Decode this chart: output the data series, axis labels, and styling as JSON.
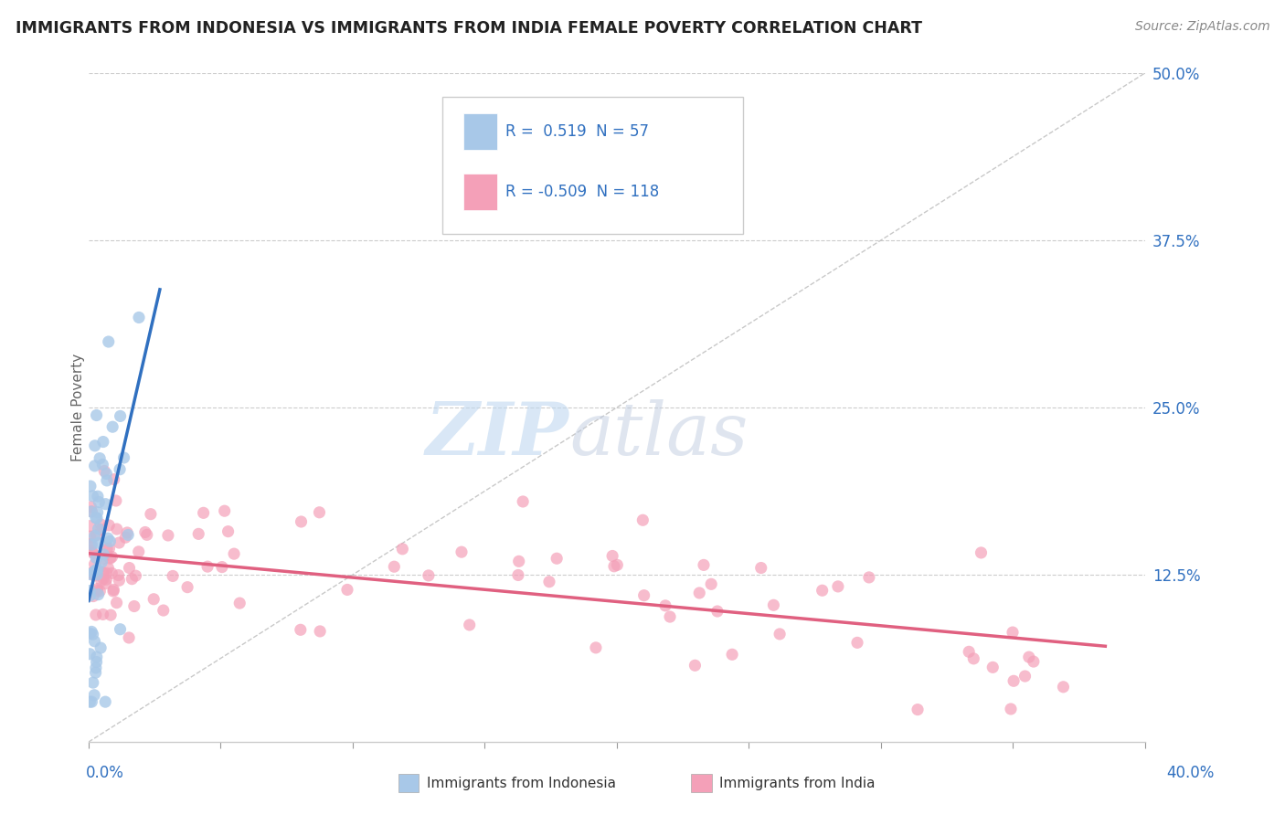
{
  "title": "IMMIGRANTS FROM INDONESIA VS IMMIGRANTS FROM INDIA FEMALE POVERTY CORRELATION CHART",
  "source": "Source: ZipAtlas.com",
  "ylabel": "Female Poverty",
  "xlim": [
    0.0,
    0.4
  ],
  "ylim": [
    0.0,
    0.5
  ],
  "R_indonesia": 0.519,
  "N_indonesia": 57,
  "R_india": -0.509,
  "N_india": 118,
  "color_indonesia": "#a8c8e8",
  "color_india": "#f4a0b8",
  "line_color_indonesia": "#3070c0",
  "line_color_india": "#e06080",
  "tick_label_color": "#3070c0",
  "watermark_zip_color": "#c0d8f0",
  "watermark_atlas_color": "#c0cce0"
}
